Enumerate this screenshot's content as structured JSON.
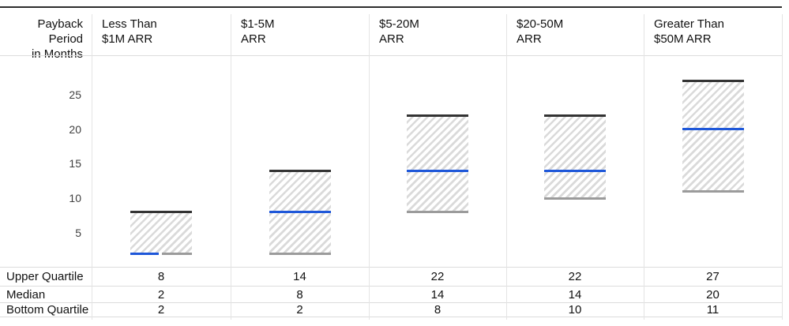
{
  "header": {
    "axis_title_line1": "Payback Period",
    "axis_title_line2": "in Months"
  },
  "columns": [
    {
      "header_line1": "Less Than",
      "header_line2": "$1M ARR"
    },
    {
      "header_line1": "$1-5M",
      "header_line2": "ARR"
    },
    {
      "header_line1": "$5-20M",
      "header_line2": "ARR"
    },
    {
      "header_line1": "$20-50M",
      "header_line2": "ARR"
    },
    {
      "header_line1": "Greater Than",
      "header_line2": "$50M ARR"
    }
  ],
  "y_axis": {
    "tick_labels": [
      "5",
      "10",
      "15",
      "20",
      "25"
    ]
  },
  "table": {
    "rows": [
      {
        "label": "Upper Quartile",
        "values": [
          "8",
          "14",
          "22",
          "22",
          "27"
        ]
      },
      {
        "label": "Median",
        "values": [
          "2",
          "8",
          "14",
          "14",
          "20"
        ]
      },
      {
        "label": "Bottom Quartile",
        "values": [
          "2",
          "2",
          "8",
          "10",
          "11"
        ]
      }
    ]
  },
  "colors": {
    "upper_quartile_line": "#333333",
    "median_line": "#1e57d9",
    "bottom_quartile_line": "#9b9b9b",
    "hatch_stripe": "#dadada",
    "divider": "#e4e4e4",
    "top_rule": "#2d2d2d",
    "text": "#111111"
  },
  "chart_data": {
    "type": "bar",
    "subtype": "quartile-range-boxes",
    "title": "Payback Period in Months",
    "categories": [
      "Less Than $1M ARR",
      "$1-5M ARR",
      "$5-20M ARR",
      "$20-50M ARR",
      "Greater Than $50M ARR"
    ],
    "series": [
      {
        "name": "Upper Quartile",
        "values": [
          8,
          14,
          22,
          22,
          27
        ],
        "color": "#333333"
      },
      {
        "name": "Median",
        "values": [
          2,
          8,
          14,
          14,
          20
        ],
        "color": "#1e57d9"
      },
      {
        "name": "Bottom Quartile",
        "values": [
          2,
          2,
          8,
          10,
          11
        ],
        "color": "#9b9b9b"
      }
    ],
    "xlabel": "",
    "ylabel": "Payback Period in Months",
    "ylim": [
      0,
      30
    ],
    "yticks": [
      5,
      10,
      15,
      20,
      25
    ],
    "grid": "vertical-column-dividers-only",
    "legend_position": "none",
    "notes": "Hatched box spans bottom quartile to upper quartile; dark line = upper quartile, blue line = median, gray line = bottom quartile; data table repeated below chart."
  }
}
